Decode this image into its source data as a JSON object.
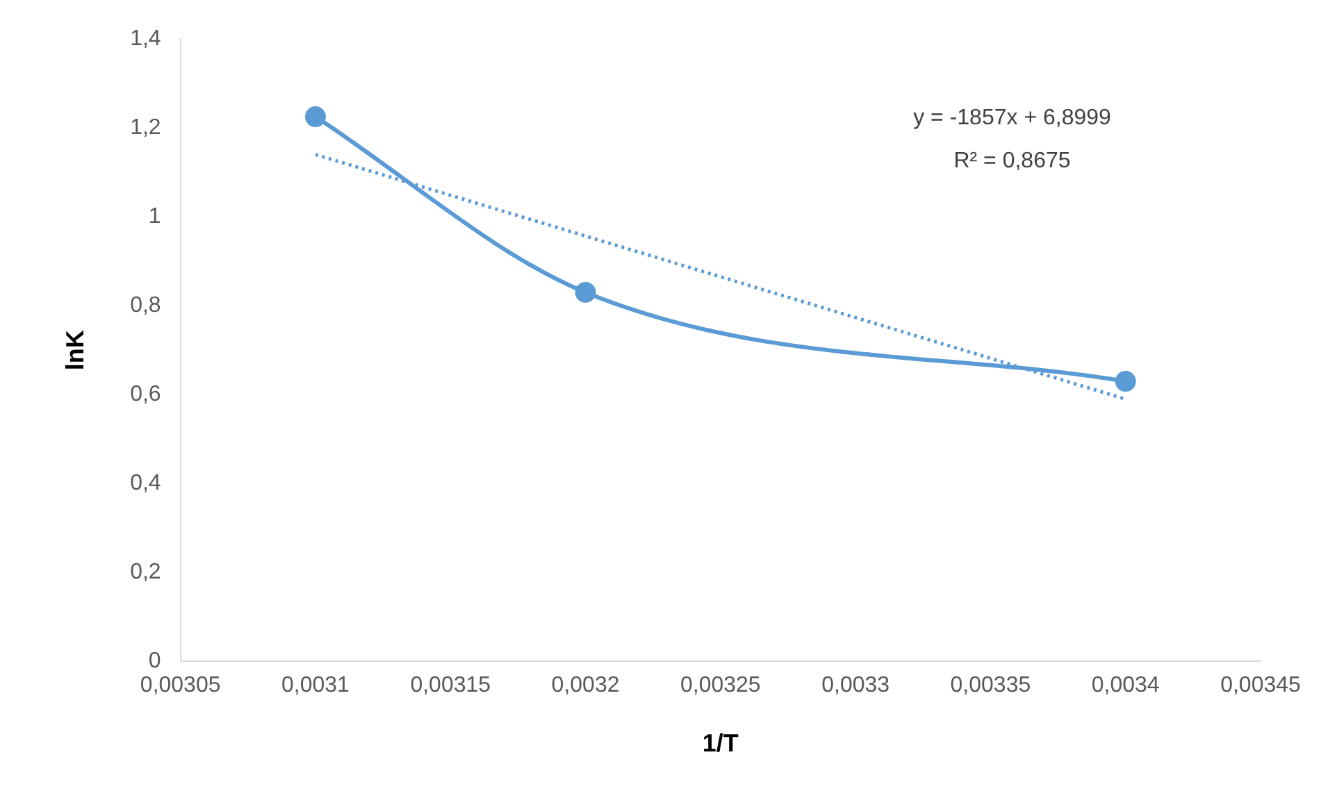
{
  "chart_data": {
    "type": "line",
    "xlabel": "1/T",
    "ylabel": "lnK",
    "xlim": [
      0.00305,
      0.00345
    ],
    "xticks": [
      {
        "value": 0.00305,
        "label": "0,00305"
      },
      {
        "value": 0.0031,
        "label": "0,0031"
      },
      {
        "value": 0.00315,
        "label": "0,00315"
      },
      {
        "value": 0.0032,
        "label": "0,0032"
      },
      {
        "value": 0.00325,
        "label": "0,00325"
      },
      {
        "value": 0.0033,
        "label": "0,0033"
      },
      {
        "value": 0.00335,
        "label": "0,00335"
      },
      {
        "value": 0.0034,
        "label": "0,0034"
      },
      {
        "value": 0.00345,
        "label": "0,00345"
      }
    ],
    "ylim": [
      0,
      1.4
    ],
    "yticks": [
      0,
      {
        "value": 0.2,
        "label": "0,2"
      },
      {
        "value": 0.4,
        "label": "0,4"
      },
      {
        "value": 0.6,
        "label": "0,6"
      },
      {
        "value": 0.8,
        "label": "0,8"
      },
      1,
      {
        "value": 1.2,
        "label": "1,2"
      },
      {
        "value": 1.4,
        "label": "1,4"
      }
    ],
    "grid": false,
    "legend": false,
    "series": [
      {
        "color": "#5b9bd5",
        "x": [
          0.0031,
          0.0032,
          0.0034
        ],
        "values": [
          1.225,
          0.83,
          0.63
        ],
        "marker": "circle",
        "line_style": "solid"
      },
      {
        "color": "#5b9bd5",
        "x": [
          0.0031,
          0.0034
        ],
        "values": [
          1.14,
          0.59
        ],
        "marker": "none",
        "line_style": "dotted"
      }
    ],
    "annotations": [
      "y = -1857x + 6,8999",
      "R² = 0,8675"
    ]
  }
}
